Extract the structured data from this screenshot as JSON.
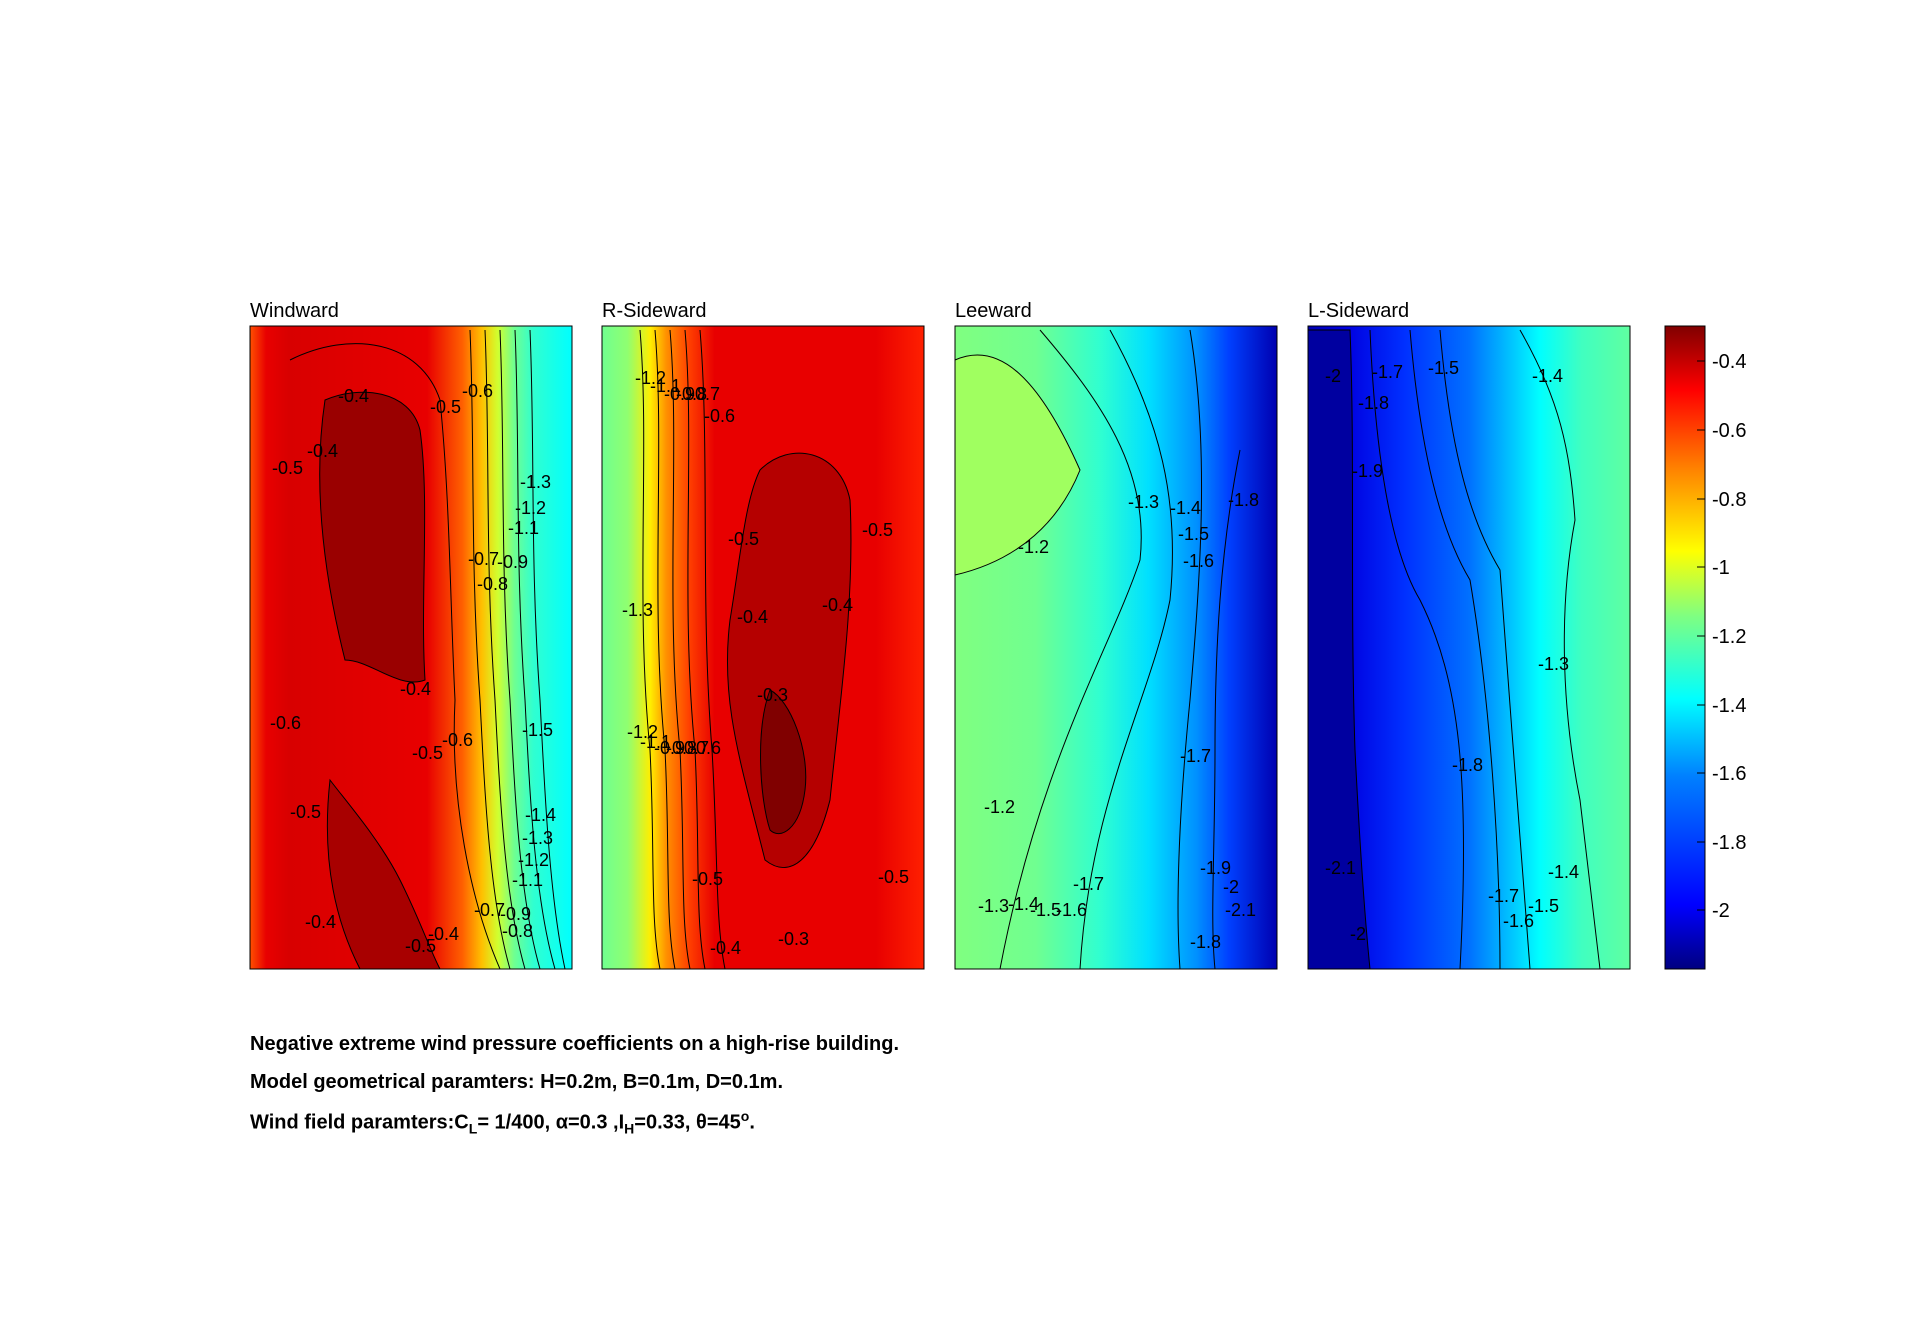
{
  "chart_data": [
    {
      "type": "heatmap",
      "title": "Windward",
      "contour_labels": [
        "-0.4",
        "-0.5",
        "-0.6",
        "-0.5",
        "-0.4",
        "-1.3",
        "-1.2",
        "-1.1",
        "-0.7",
        "-0.9",
        "-0.8",
        "-0.4",
        "-0.6",
        "-0.5",
        "-0.6",
        "-1.5",
        "-0.5",
        "-1.4",
        "-1.3",
        "-1.2",
        "-1.1",
        "-0.4",
        "-0.7",
        "-0.9",
        "-0.8",
        "-0.5",
        "-0.4"
      ],
      "palette": [
        "#800000",
        "#b50000",
        "#e00000",
        "#ff2000",
        "#ff6000",
        "#ff9000",
        "#ffc000",
        "#ffee00",
        "#d8ff28",
        "#a8ff58",
        "#78ff88",
        "#48ffb8",
        "#18ffe8",
        "#00e0ff",
        "#00b0ff",
        "#0080ff",
        "#0050ff",
        "#0020ff",
        "#0000d0",
        "#000090"
      ]
    },
    {
      "type": "heatmap",
      "title": "R-Sideward",
      "contour_labels": [
        "-1.2",
        "-1.1",
        "-0.9",
        "-0.8",
        "-0.7",
        "-0.6",
        "-0.5",
        "-0.5",
        "-1.3",
        "-0.4",
        "-0.4",
        "-0.3",
        "-1.2",
        "-1.1",
        "-0.9",
        "-0.8",
        "-0.7",
        "-0.6",
        "-0.5",
        "-0.5",
        "-0.4",
        "-0.3"
      ]
    },
    {
      "type": "heatmap",
      "title": "Leeward",
      "contour_labels": [
        "-1.3",
        "-1.4",
        "-1.8",
        "-1.5",
        "-1.2",
        "-1.6",
        "-1.7",
        "-1.2",
        "-1.7",
        "-1.9",
        "-2",
        "-2.1",
        "-1.3",
        "-1.4",
        "-1.5",
        "-1.6",
        "-1.8"
      ]
    },
    {
      "type": "heatmap",
      "title": "L-Sideward",
      "contour_labels": [
        "-2",
        "-1.7",
        "-1.5",
        "-1.4",
        "-1.8",
        "-1.9",
        "-1.3",
        "-1.8",
        "-2.1",
        "-1.4",
        "-1.7",
        "-1.5",
        "-1.6",
        "-2"
      ]
    }
  ],
  "colorbar": {
    "ticks": [
      "-0.4",
      "-0.6",
      "-0.8",
      "-1",
      "-1.2",
      "-1.4",
      "-1.6",
      "-1.8",
      "-2"
    ]
  },
  "caption": {
    "line1": "Negative extreme wind pressure coefficients on a high-rise building.",
    "line2": "Model geometrical paramters: H=0.2m, B=0.1m, D=0.1m.",
    "line3_prefix": "Wind field paramters:C",
    "line3_sub_L": "L",
    "line3_mid1": "= 1/400, α=0.3 ,I",
    "line3_sub_H": "H",
    "line3_mid2": "=0.33, θ=45",
    "line3_sup": "o",
    "line3_end": "."
  }
}
